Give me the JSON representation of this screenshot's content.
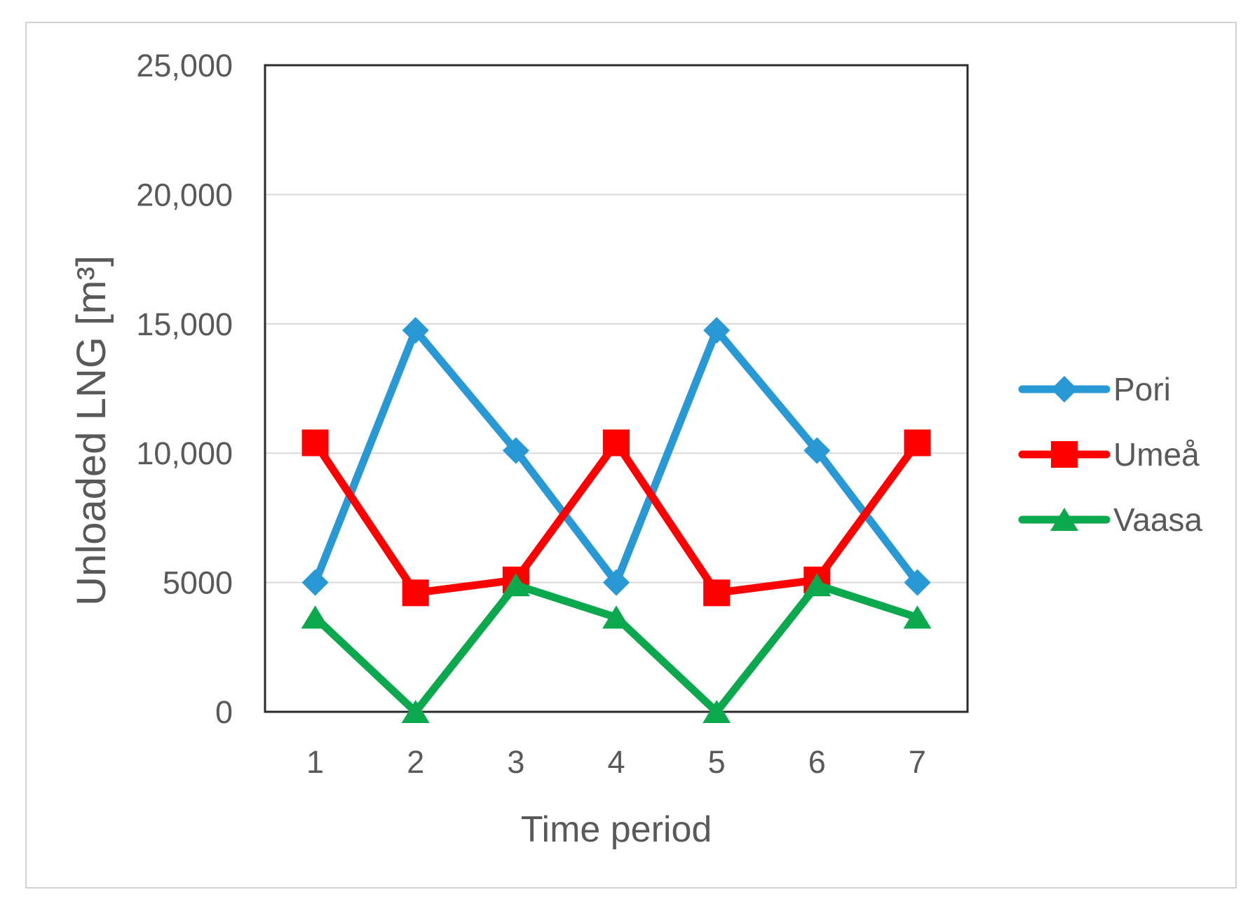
{
  "chart_data": {
    "type": "line",
    "title": "",
    "x": [
      1,
      2,
      3,
      4,
      5,
      6,
      7
    ],
    "xtick_labels": [
      "1",
      "2",
      "3",
      "4",
      "5",
      "6",
      "7"
    ],
    "xlabel": "Time period",
    "ylabel": "Unloaded LNG [m³]",
    "ylim": [
      0,
      25000
    ],
    "ytick_interval": 5000,
    "ytick_labels": [
      "0",
      "5000",
      "10,000",
      "15,000",
      "20,000",
      "25,000"
    ],
    "grid": "horizontal",
    "legend_position": "right-outside",
    "series": [
      {
        "name": "Pori",
        "color": "#2999D6",
        "marker": "diamond",
        "values": [
          5000,
          14750,
          10100,
          5000,
          14750,
          10100,
          5000
        ]
      },
      {
        "name": "Umeå",
        "color": "#FF0000",
        "marker": "square",
        "values": [
          10400,
          4600,
          5100,
          10400,
          4600,
          5100,
          10400
        ]
      },
      {
        "name": "Vaasa",
        "color": "#0CA84D",
        "marker": "triangle",
        "values": [
          3650,
          0,
          4900,
          3650,
          0,
          4900,
          3650
        ]
      }
    ],
    "colors": {
      "text": "#595959",
      "gridline": "#D9D9D9",
      "plot_border": "#2B2B2B",
      "figure_frame": "#D3D3D3",
      "background": "#FFFFFF"
    }
  }
}
